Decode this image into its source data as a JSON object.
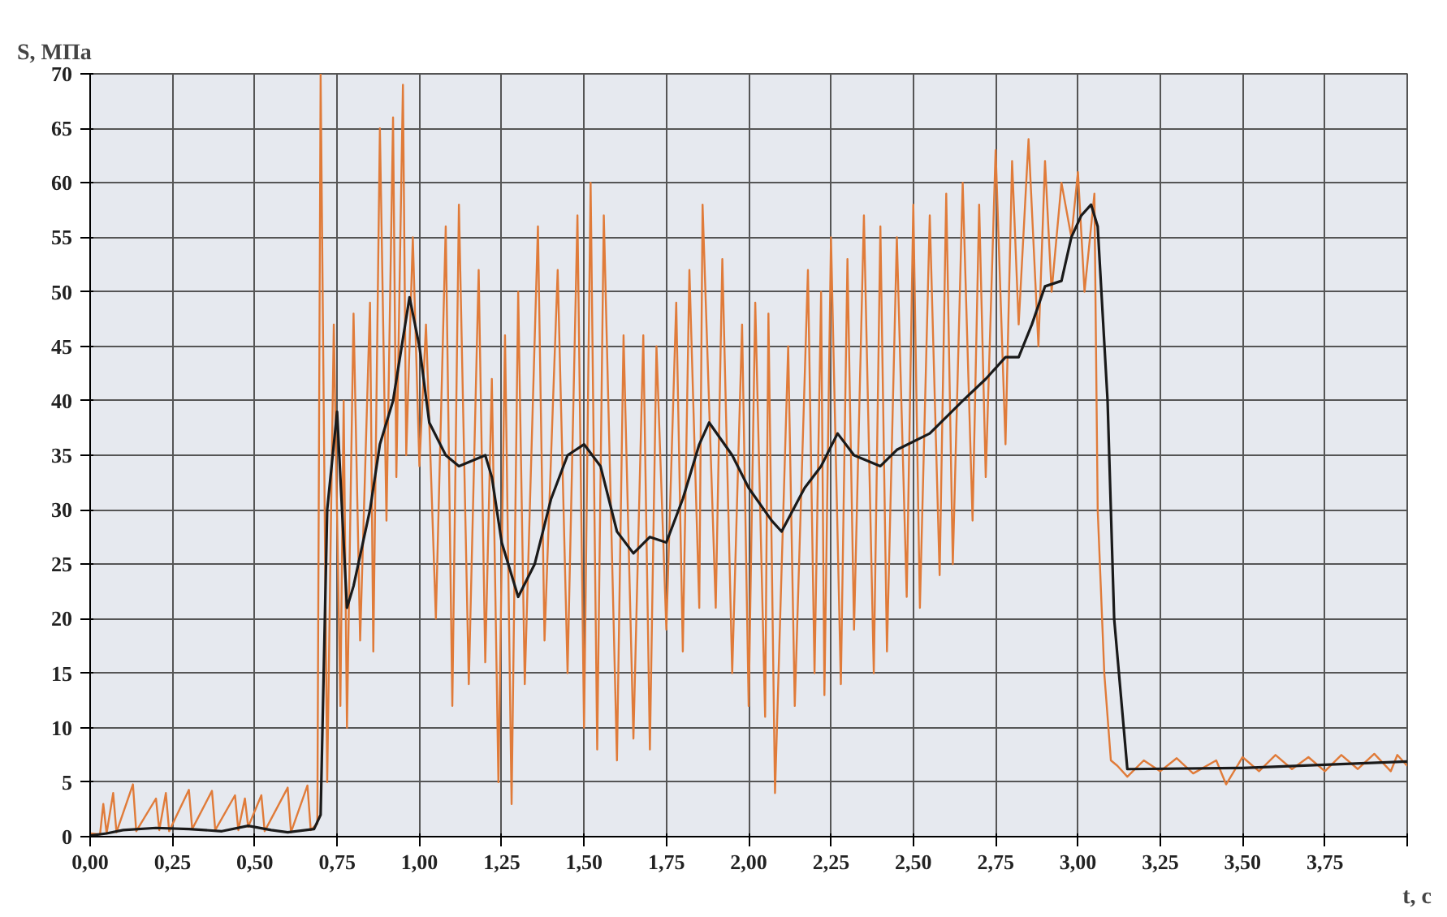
{
  "chart_data": {
    "type": "line",
    "xlabel": "t, c",
    "ylabel": "S, МПа",
    "grid": true,
    "xlim": [
      0,
      4
    ],
    "ylim": [
      0,
      70
    ],
    "xticks": [
      {
        "value": 0,
        "label": "0,00"
      },
      {
        "value": 0.25,
        "label": "0,25"
      },
      {
        "value": 0.5,
        "label": "0,50"
      },
      {
        "value": 0.75,
        "label": "0,75"
      },
      {
        "value": 1,
        "label": "1,00"
      },
      {
        "value": 1.25,
        "label": "1,25"
      },
      {
        "value": 1.5,
        "label": "1,50"
      },
      {
        "value": 1.75,
        "label": "1,75"
      },
      {
        "value": 2,
        "label": "2,00"
      },
      {
        "value": 2.25,
        "label": "2,25"
      },
      {
        "value": 2.5,
        "label": "2,50"
      },
      {
        "value": 2.75,
        "label": "2,75"
      },
      {
        "value": 3,
        "label": "3,00"
      },
      {
        "value": 3.25,
        "label": "3,25"
      },
      {
        "value": 3.5,
        "label": "3,50"
      },
      {
        "value": 3.75,
        "label": "3,75"
      },
      {
        "value": 4,
        "label": null
      }
    ],
    "yticks": [
      0,
      5,
      10,
      15,
      20,
      25,
      30,
      35,
      40,
      45,
      50,
      55,
      60,
      65,
      70
    ],
    "series": [
      {
        "color": "#e07b39",
        "x": [
          0.0,
          0.03,
          0.04,
          0.05,
          0.07,
          0.08,
          0.13,
          0.14,
          0.2,
          0.21,
          0.23,
          0.24,
          0.3,
          0.31,
          0.37,
          0.38,
          0.44,
          0.45,
          0.47,
          0.48,
          0.52,
          0.53,
          0.6,
          0.61,
          0.66,
          0.67,
          0.69,
          0.7,
          0.72,
          0.74,
          0.76,
          0.77,
          0.78,
          0.8,
          0.82,
          0.85,
          0.86,
          0.88,
          0.9,
          0.92,
          0.93,
          0.95,
          0.96,
          0.98,
          1.0,
          1.02,
          1.05,
          1.08,
          1.1,
          1.12,
          1.15,
          1.18,
          1.2,
          1.22,
          1.24,
          1.26,
          1.28,
          1.3,
          1.32,
          1.36,
          1.38,
          1.42,
          1.45,
          1.48,
          1.5,
          1.52,
          1.54,
          1.56,
          1.6,
          1.62,
          1.65,
          1.68,
          1.7,
          1.72,
          1.75,
          1.78,
          1.8,
          1.82,
          1.85,
          1.86,
          1.9,
          1.92,
          1.95,
          1.98,
          2.0,
          2.02,
          2.05,
          2.06,
          2.08,
          2.12,
          2.14,
          2.18,
          2.2,
          2.22,
          2.23,
          2.25,
          2.28,
          2.3,
          2.32,
          2.35,
          2.38,
          2.4,
          2.42,
          2.45,
          2.48,
          2.5,
          2.52,
          2.55,
          2.58,
          2.6,
          2.62,
          2.65,
          2.68,
          2.7,
          2.72,
          2.75,
          2.78,
          2.8,
          2.82,
          2.85,
          2.88,
          2.9,
          2.92,
          2.95,
          2.98,
          3.0,
          3.02,
          3.05,
          3.06,
          3.08,
          3.1,
          3.12,
          3.15,
          3.2,
          3.25,
          3.3,
          3.35,
          3.42,
          3.45,
          3.5,
          3.55,
          3.6,
          3.65,
          3.7,
          3.75,
          3.8,
          3.85,
          3.9,
          3.95,
          3.97,
          4.0
        ],
        "values": [
          0.3,
          0.2,
          3,
          0.3,
          4,
          0.4,
          4.8,
          0.5,
          3.5,
          0.6,
          4,
          0.5,
          4.3,
          0.7,
          4.2,
          0.6,
          3.8,
          0.6,
          3.5,
          0.9,
          3.8,
          0.5,
          4.5,
          0.4,
          4.7,
          0.6,
          1.2,
          70,
          5,
          47,
          12,
          40,
          10,
          48,
          18,
          49,
          17,
          65,
          29,
          66,
          33,
          69,
          35,
          55,
          34,
          47,
          20,
          56,
          12,
          58,
          14,
          52,
          16,
          42,
          5,
          46,
          3,
          50,
          14,
          56,
          18,
          52,
          15,
          57,
          10,
          60,
          8,
          57,
          7,
          46,
          9,
          46,
          8,
          45,
          19,
          49,
          17,
          52,
          21,
          58,
          21,
          53,
          15,
          47,
          12,
          49,
          11,
          48,
          4,
          45,
          12,
          52,
          15,
          50,
          13,
          55,
          14,
          53,
          19,
          57,
          15,
          56,
          17,
          55,
          22,
          58,
          21,
          57,
          24,
          59,
          25,
          60,
          29,
          58,
          33,
          63,
          36,
          62,
          47,
          64,
          45,
          62,
          50,
          60,
          55,
          61,
          50,
          59,
          30,
          15,
          7,
          6.5,
          5.5,
          7,
          6,
          7.2,
          5.8,
          7,
          4.8,
          7.3,
          6,
          7.5,
          6.2,
          7.3,
          6,
          7.5,
          6.2,
          7.6,
          6,
          7.5,
          6.5
        ]
      },
      {
        "color": "#1a1a1a",
        "x": [
          0.0,
          0.05,
          0.1,
          0.2,
          0.3,
          0.4,
          0.48,
          0.55,
          0.6,
          0.68,
          0.7,
          0.72,
          0.75,
          0.78,
          0.8,
          0.85,
          0.88,
          0.92,
          0.97,
          1.0,
          1.03,
          1.08,
          1.12,
          1.2,
          1.22,
          1.25,
          1.3,
          1.35,
          1.4,
          1.45,
          1.5,
          1.55,
          1.6,
          1.65,
          1.7,
          1.75,
          1.8,
          1.85,
          1.88,
          1.95,
          2.0,
          2.07,
          2.1,
          2.17,
          2.22,
          2.27,
          2.32,
          2.4,
          2.45,
          2.55,
          2.65,
          2.72,
          2.78,
          2.82,
          2.86,
          2.9,
          2.95,
          2.98,
          3.01,
          3.04,
          3.06,
          3.09,
          3.11,
          3.15,
          3.5,
          4.0
        ],
        "values": [
          0.1,
          0.3,
          0.6,
          0.8,
          0.7,
          0.5,
          1,
          0.6,
          0.4,
          0.7,
          2,
          30,
          39,
          21,
          23,
          30,
          36,
          40,
          49.5,
          45,
          38,
          35,
          34,
          35,
          33,
          27,
          22,
          25,
          31,
          35,
          36,
          34,
          28,
          26,
          27.5,
          27,
          31,
          36,
          38,
          35,
          32,
          29,
          28,
          32,
          34,
          37,
          35,
          34,
          35.5,
          37,
          40,
          42,
          44,
          44,
          47,
          50.5,
          51,
          55,
          57,
          58,
          56,
          40,
          20,
          6.2,
          6.3,
          6.9
        ]
      }
    ]
  }
}
